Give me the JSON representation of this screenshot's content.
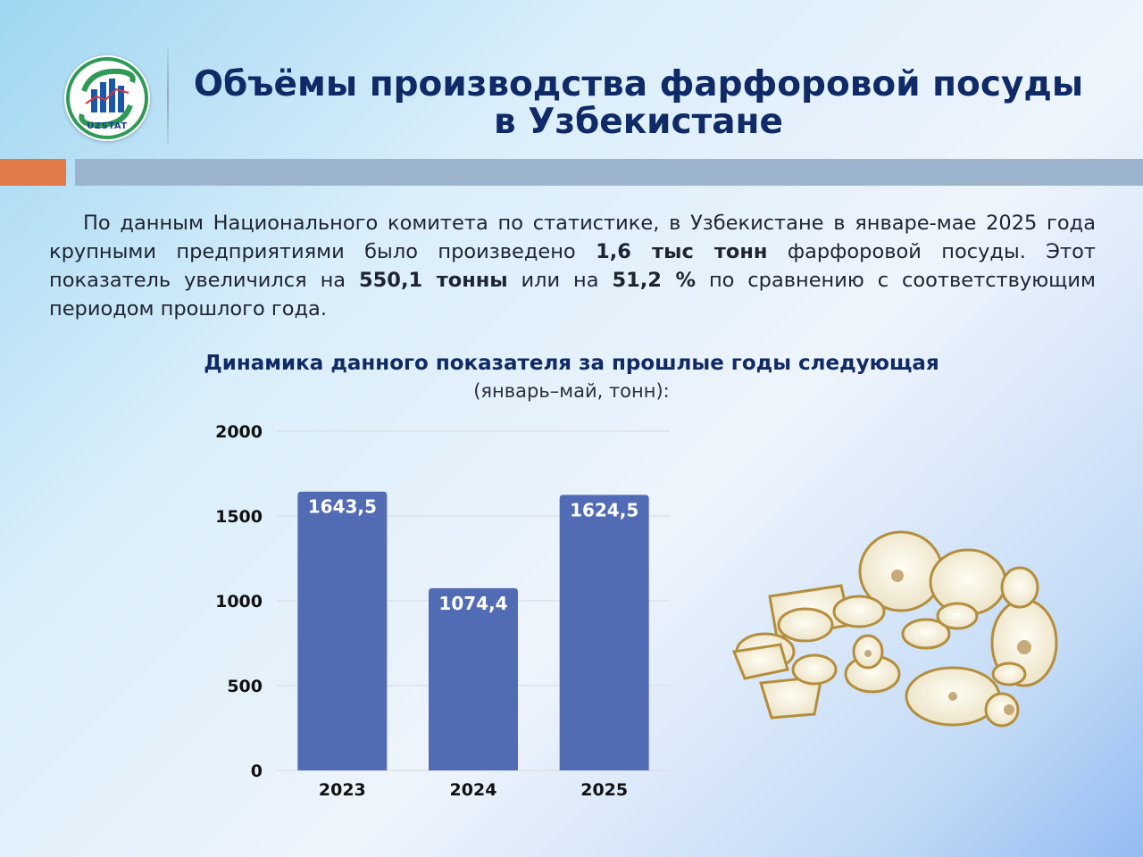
{
  "header": {
    "logo_text": "UZSTAT",
    "title_line1": "Объёмы производства фарфоровой посуды",
    "title_line2": "в Узбекистане"
  },
  "intro": {
    "p1": "По данным Национального комитета по статистике, в Узбекистане в январе-мае 2025 года крупными предприятиями было произведено ",
    "b1": "1,6 тыс тонн",
    "p2": " фарфоровой посуды. Этот показатель увеличился на ",
    "b2": "550,1 тонны",
    "p3": " или на ",
    "b3": "51,2 %",
    "p4": " по сравнению с соответствующим периодом прошлого года."
  },
  "chart_heading": {
    "title": "Динамика данного показателя за прошлые годы следующая",
    "subtitle": "(январь–май, тонн):"
  },
  "chart_data": {
    "type": "bar",
    "categories": [
      "2023",
      "2024",
      "2025"
    ],
    "values": [
      1643.5,
      1074.4,
      1624.5
    ],
    "value_labels": [
      "1643,5",
      "1074,4",
      "1624,5"
    ],
    "ylim": [
      0,
      2000
    ],
    "yticks": [
      "0",
      "500",
      "1000",
      "1500",
      "2000"
    ],
    "grid": true,
    "bar_color": "#526bb5"
  },
  "illustration": {
    "icon": "porcelain-dinnerware-set-icon"
  }
}
